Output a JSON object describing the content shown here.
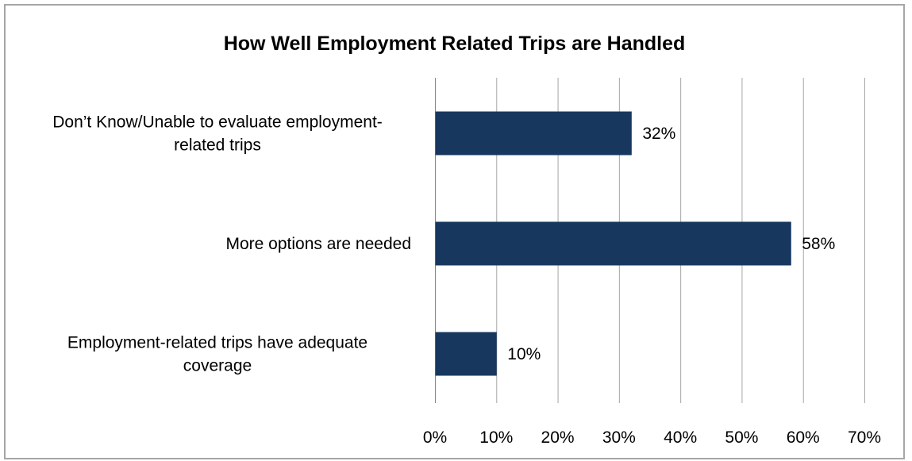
{
  "chart_data": {
    "type": "bar",
    "orientation": "horizontal",
    "title": "How Well Employment Related Trips are Handled",
    "categories": [
      "Don’t Know/Unable to evaluate employment-related trips",
      "More options are needed",
      "Employment-related trips have adequate coverage"
    ],
    "category_lines": [
      [
        "Don’t Know/Unable to evaluate employment-",
        "related trips"
      ],
      [
        "More options are needed"
      ],
      [
        "Employment-related trips have adequate",
        "coverage"
      ]
    ],
    "values": [
      32,
      58,
      10
    ],
    "data_labels": [
      "32%",
      "58%",
      "10%"
    ],
    "xlim": [
      0,
      70
    ],
    "x_ticks": [
      0,
      10,
      20,
      30,
      40,
      50,
      60,
      70
    ],
    "x_tick_labels": [
      "0%",
      "10%",
      "20%",
      "30%",
      "40%",
      "50%",
      "60%",
      "70%"
    ],
    "xlabel": "",
    "ylabel": "",
    "grid": "vertical",
    "legend": "none",
    "bar_color": "#17375e",
    "grid_color": "#a6a6a6"
  }
}
